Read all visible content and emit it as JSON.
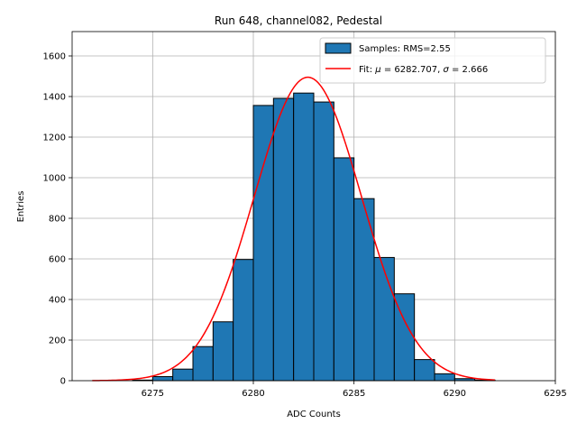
{
  "chart_data": {
    "type": "bar",
    "title": "Run 648, channel082, Pedestal",
    "xlabel": "ADC Counts",
    "ylabel": "Entries",
    "xlim": [
      6271,
      6295
    ],
    "ylim": [
      0,
      1720
    ],
    "xticks": [
      6275,
      6280,
      6285,
      6290,
      6295
    ],
    "yticks": [
      0,
      200,
      400,
      600,
      800,
      1000,
      1200,
      1400,
      1600
    ],
    "grid": true,
    "legend_position": "top-right",
    "bin_width": 1,
    "series": [
      {
        "name": "Samples: RMS=2.55",
        "kind": "histogram",
        "color": "#1f77b4",
        "edge_color": "#000000",
        "bins": [
          {
            "left": 6272,
            "value": 0
          },
          {
            "left": 6273,
            "value": 0
          },
          {
            "left": 6274,
            "value": 3
          },
          {
            "left": 6275,
            "value": 20
          },
          {
            "left": 6276,
            "value": 57
          },
          {
            "left": 6277,
            "value": 168
          },
          {
            "left": 6278,
            "value": 290
          },
          {
            "left": 6279,
            "value": 597
          },
          {
            "left": 6280,
            "value": 1356
          },
          {
            "left": 6281,
            "value": 1391
          },
          {
            "left": 6282,
            "value": 1417
          },
          {
            "left": 6283,
            "value": 1373
          },
          {
            "left": 6284,
            "value": 1098
          },
          {
            "left": 6285,
            "value": 897
          },
          {
            "left": 6286,
            "value": 607
          },
          {
            "left": 6287,
            "value": 428
          },
          {
            "left": 6288,
            "value": 104
          },
          {
            "left": 6289,
            "value": 34
          },
          {
            "left": 6290,
            "value": 10
          },
          {
            "left": 6291,
            "value": 3
          }
        ]
      },
      {
        "name": "Fit: μ = 6282.707, σ = 2.666",
        "name_parts": {
          "prefix": "Fit: ",
          "mu": "μ",
          "mid": " = 6282.707, ",
          "sigma": "σ",
          "suffix": " = 2.666"
        },
        "kind": "gaussian",
        "color": "#ff0000",
        "mu": 6282.707,
        "sigma": 2.666,
        "amplitude": 1495,
        "x_range": [
          6272,
          6292
        ]
      }
    ]
  }
}
